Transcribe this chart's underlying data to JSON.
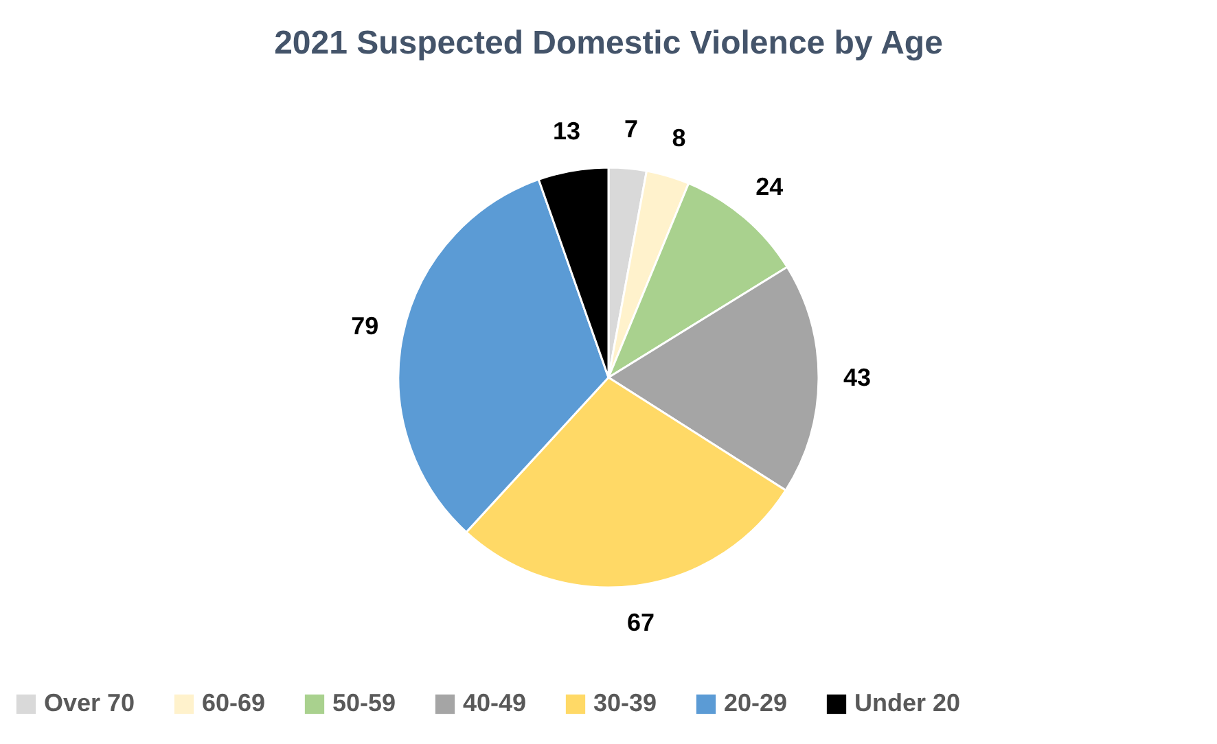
{
  "chart_data": {
    "type": "pie",
    "title": "2021 Suspected Domestic Violence by Age",
    "categories": [
      "Over 70",
      "60-69",
      "50-59",
      "40-49",
      "30-39",
      "20-29",
      "Under 20"
    ],
    "values": [
      7,
      8,
      24,
      43,
      67,
      79,
      13
    ],
    "colors": [
      "#d9d9d9",
      "#fff2cc",
      "#a9d18e",
      "#a5a5a5",
      "#ffd966",
      "#5b9bd5",
      "#000000"
    ],
    "data_labels": true,
    "legend": "bottom"
  }
}
